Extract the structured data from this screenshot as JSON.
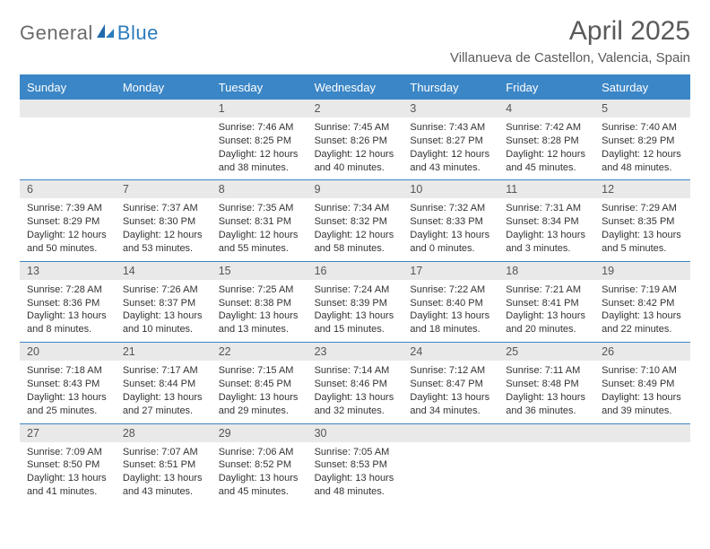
{
  "brand": {
    "part1": "General",
    "part2": "Blue"
  },
  "title": "April 2025",
  "location": "Villanueva de Castellon, Valencia, Spain",
  "colors": {
    "header_bg": "#3b86c6",
    "bar_bg": "#e9e9e9",
    "rule": "#3b86c6",
    "text": "#333333",
    "muted": "#5a5a5a"
  },
  "dow": [
    "Sunday",
    "Monday",
    "Tuesday",
    "Wednesday",
    "Thursday",
    "Friday",
    "Saturday"
  ],
  "grid": {
    "first_weekday_index": 2,
    "days": 30
  },
  "days": {
    "1": {
      "sunrise": "7:46 AM",
      "sunset": "8:25 PM",
      "daylight": "12 hours and 38 minutes."
    },
    "2": {
      "sunrise": "7:45 AM",
      "sunset": "8:26 PM",
      "daylight": "12 hours and 40 minutes."
    },
    "3": {
      "sunrise": "7:43 AM",
      "sunset": "8:27 PM",
      "daylight": "12 hours and 43 minutes."
    },
    "4": {
      "sunrise": "7:42 AM",
      "sunset": "8:28 PM",
      "daylight": "12 hours and 45 minutes."
    },
    "5": {
      "sunrise": "7:40 AM",
      "sunset": "8:29 PM",
      "daylight": "12 hours and 48 minutes."
    },
    "6": {
      "sunrise": "7:39 AM",
      "sunset": "8:29 PM",
      "daylight": "12 hours and 50 minutes."
    },
    "7": {
      "sunrise": "7:37 AM",
      "sunset": "8:30 PM",
      "daylight": "12 hours and 53 minutes."
    },
    "8": {
      "sunrise": "7:35 AM",
      "sunset": "8:31 PM",
      "daylight": "12 hours and 55 minutes."
    },
    "9": {
      "sunrise": "7:34 AM",
      "sunset": "8:32 PM",
      "daylight": "12 hours and 58 minutes."
    },
    "10": {
      "sunrise": "7:32 AM",
      "sunset": "8:33 PM",
      "daylight": "13 hours and 0 minutes."
    },
    "11": {
      "sunrise": "7:31 AM",
      "sunset": "8:34 PM",
      "daylight": "13 hours and 3 minutes."
    },
    "12": {
      "sunrise": "7:29 AM",
      "sunset": "8:35 PM",
      "daylight": "13 hours and 5 minutes."
    },
    "13": {
      "sunrise": "7:28 AM",
      "sunset": "8:36 PM",
      "daylight": "13 hours and 8 minutes."
    },
    "14": {
      "sunrise": "7:26 AM",
      "sunset": "8:37 PM",
      "daylight": "13 hours and 10 minutes."
    },
    "15": {
      "sunrise": "7:25 AM",
      "sunset": "8:38 PM",
      "daylight": "13 hours and 13 minutes."
    },
    "16": {
      "sunrise": "7:24 AM",
      "sunset": "8:39 PM",
      "daylight": "13 hours and 15 minutes."
    },
    "17": {
      "sunrise": "7:22 AM",
      "sunset": "8:40 PM",
      "daylight": "13 hours and 18 minutes."
    },
    "18": {
      "sunrise": "7:21 AM",
      "sunset": "8:41 PM",
      "daylight": "13 hours and 20 minutes."
    },
    "19": {
      "sunrise": "7:19 AM",
      "sunset": "8:42 PM",
      "daylight": "13 hours and 22 minutes."
    },
    "20": {
      "sunrise": "7:18 AM",
      "sunset": "8:43 PM",
      "daylight": "13 hours and 25 minutes."
    },
    "21": {
      "sunrise": "7:17 AM",
      "sunset": "8:44 PM",
      "daylight": "13 hours and 27 minutes."
    },
    "22": {
      "sunrise": "7:15 AM",
      "sunset": "8:45 PM",
      "daylight": "13 hours and 29 minutes."
    },
    "23": {
      "sunrise": "7:14 AM",
      "sunset": "8:46 PM",
      "daylight": "13 hours and 32 minutes."
    },
    "24": {
      "sunrise": "7:12 AM",
      "sunset": "8:47 PM",
      "daylight": "13 hours and 34 minutes."
    },
    "25": {
      "sunrise": "7:11 AM",
      "sunset": "8:48 PM",
      "daylight": "13 hours and 36 minutes."
    },
    "26": {
      "sunrise": "7:10 AM",
      "sunset": "8:49 PM",
      "daylight": "13 hours and 39 minutes."
    },
    "27": {
      "sunrise": "7:09 AM",
      "sunset": "8:50 PM",
      "daylight": "13 hours and 41 minutes."
    },
    "28": {
      "sunrise": "7:07 AM",
      "sunset": "8:51 PM",
      "daylight": "13 hours and 43 minutes."
    },
    "29": {
      "sunrise": "7:06 AM",
      "sunset": "8:52 PM",
      "daylight": "13 hours and 45 minutes."
    },
    "30": {
      "sunrise": "7:05 AM",
      "sunset": "8:53 PM",
      "daylight": "13 hours and 48 minutes."
    }
  },
  "labels": {
    "sunrise": "Sunrise:",
    "sunset": "Sunset:",
    "daylight": "Daylight:"
  }
}
